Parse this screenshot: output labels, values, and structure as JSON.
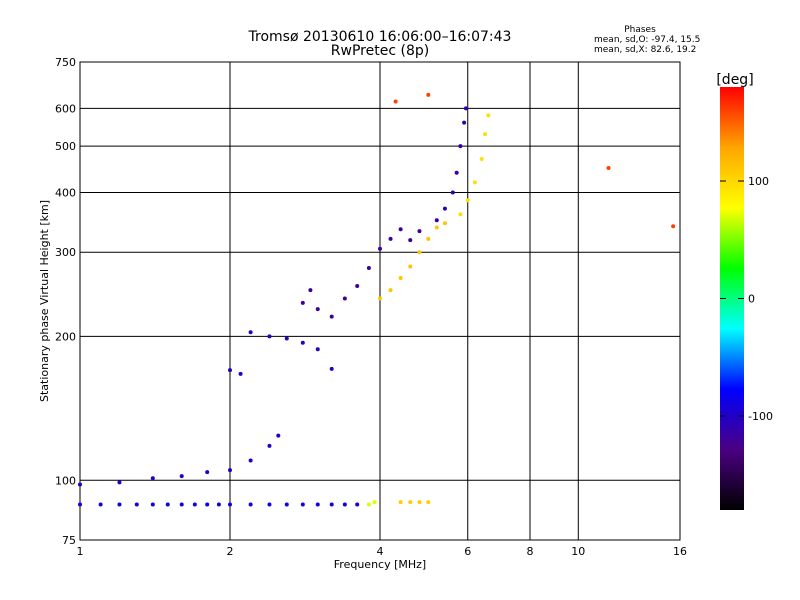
{
  "chart_data": {
    "type": "scatter",
    "title": "Tromsø 20130610 16:06:00–16:07:43",
    "subtitle": "RwPretec (8p)",
    "xlabel": "Frequency [MHz]",
    "ylabel": "Stationary phase Virtual Height [km]",
    "x_scale": "log",
    "y_scale": "log",
    "xlim": [
      1,
      16
    ],
    "ylim": [
      75,
      750
    ],
    "x_ticks": [
      1,
      2,
      4,
      6,
      8,
      10,
      16
    ],
    "y_ticks": [
      75,
      100,
      200,
      300,
      400,
      500,
      600,
      750
    ],
    "grid": true,
    "legend": {
      "title": "Phases",
      "lines": [
        "mean, sd,O: -97.4, 15.5",
        "mean, sd,X:  82.6, 19.2"
      ],
      "placement": "top-right"
    },
    "colorbar": {
      "label": "[deg]",
      "ticks": [
        100,
        0,
        -100
      ],
      "range": [
        -180,
        180
      ],
      "colors": [
        "#000000",
        "#4b0082",
        "#0000ff",
        "#00ffff",
        "#00ff00",
        "#ffff00",
        "#ffa500",
        "#ff0000"
      ]
    },
    "series": [
      {
        "phase": -90,
        "points": [
          [
            1.0,
            89
          ],
          [
            1.1,
            89
          ],
          [
            1.2,
            89
          ],
          [
            1.3,
            89
          ],
          [
            1.4,
            89
          ],
          [
            1.5,
            89
          ],
          [
            1.6,
            89
          ],
          [
            1.7,
            89
          ],
          [
            1.8,
            89
          ],
          [
            1.9,
            89
          ],
          [
            2.0,
            89
          ],
          [
            2.2,
            89
          ],
          [
            2.4,
            89
          ],
          [
            2.6,
            89
          ],
          [
            2.8,
            89
          ],
          [
            3.0,
            89
          ],
          [
            3.2,
            89
          ],
          [
            3.4,
            89
          ],
          [
            3.6,
            89
          ]
        ]
      },
      {
        "phase": -100,
        "points": [
          [
            1.0,
            98
          ],
          [
            1.2,
            99
          ],
          [
            1.4,
            101
          ],
          [
            1.6,
            102
          ],
          [
            1.8,
            104
          ],
          [
            2.0,
            105
          ],
          [
            2.2,
            110
          ],
          [
            2.4,
            118
          ],
          [
            2.5,
            124
          ]
        ]
      },
      {
        "phase": -105,
        "points": [
          [
            2.0,
            170
          ],
          [
            2.1,
            167
          ],
          [
            2.2,
            204
          ],
          [
            2.4,
            200
          ],
          [
            2.6,
            198
          ],
          [
            2.8,
            194
          ],
          [
            3.0,
            188
          ],
          [
            3.2,
            171
          ]
        ]
      },
      {
        "phase": -120,
        "points": [
          [
            2.8,
            235
          ],
          [
            2.9,
            250
          ],
          [
            3.0,
            228
          ],
          [
            3.2,
            220
          ],
          [
            3.4,
            240
          ],
          [
            3.6,
            255
          ],
          [
            3.8,
            278
          ],
          [
            4.0,
            305
          ],
          [
            4.2,
            320
          ],
          [
            4.4,
            335
          ],
          [
            4.6,
            318
          ],
          [
            4.8,
            332
          ]
        ]
      },
      {
        "phase": -110,
        "points": [
          [
            5.2,
            350
          ],
          [
            5.4,
            370
          ],
          [
            5.6,
            400
          ],
          [
            5.7,
            440
          ],
          [
            5.8,
            500
          ],
          [
            5.9,
            560
          ],
          [
            5.95,
            600
          ]
        ]
      },
      {
        "phase": 70,
        "points": [
          [
            3.8,
            89
          ],
          [
            3.9,
            90
          ]
        ]
      },
      {
        "phase": 110,
        "points": [
          [
            4.0,
            240
          ],
          [
            4.2,
            250
          ],
          [
            4.4,
            265
          ],
          [
            4.6,
            280
          ],
          [
            4.8,
            300
          ],
          [
            5.0,
            320
          ],
          [
            5.2,
            338
          ],
          [
            5.4,
            345
          ]
        ]
      },
      {
        "phase": 105,
        "points": [
          [
            4.4,
            90
          ],
          [
            4.6,
            90
          ],
          [
            4.8,
            90
          ],
          [
            5.0,
            90
          ]
        ]
      },
      {
        "phase": 95,
        "points": [
          [
            5.8,
            360
          ],
          [
            6.0,
            385
          ],
          [
            6.2,
            420
          ],
          [
            6.4,
            470
          ],
          [
            6.5,
            530
          ],
          [
            6.6,
            580
          ]
        ]
      },
      {
        "phase": 160,
        "points": [
          [
            4.3,
            620
          ],
          [
            5.0,
            640
          ],
          [
            11.5,
            450
          ],
          [
            15.5,
            340
          ]
        ]
      }
    ]
  }
}
